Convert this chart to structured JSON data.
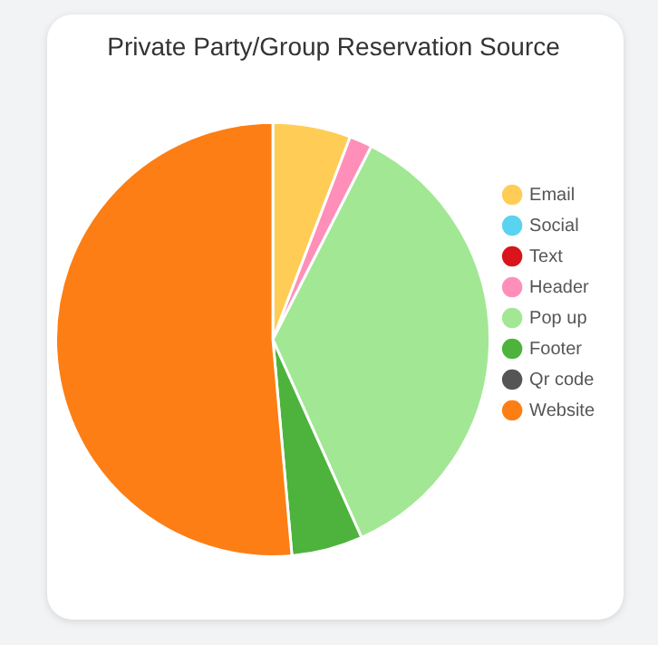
{
  "chart_data": {
    "type": "pie",
    "title": "Private Party/Group Reservation Source",
    "categories": [
      "Email",
      "Social",
      "Text",
      "Header",
      "Pop up",
      "Footer",
      "Qr code",
      "Website"
    ],
    "values": [
      5.8,
      0,
      0,
      1.7,
      35.8,
      5.3,
      0,
      51.4
    ],
    "colors": [
      "#ffcd56",
      "#5ad3f0",
      "#d9141b",
      "#ff8fb8",
      "#a2e794",
      "#4db33d",
      "#555555",
      "#fd7e14"
    ],
    "legend": "right"
  }
}
